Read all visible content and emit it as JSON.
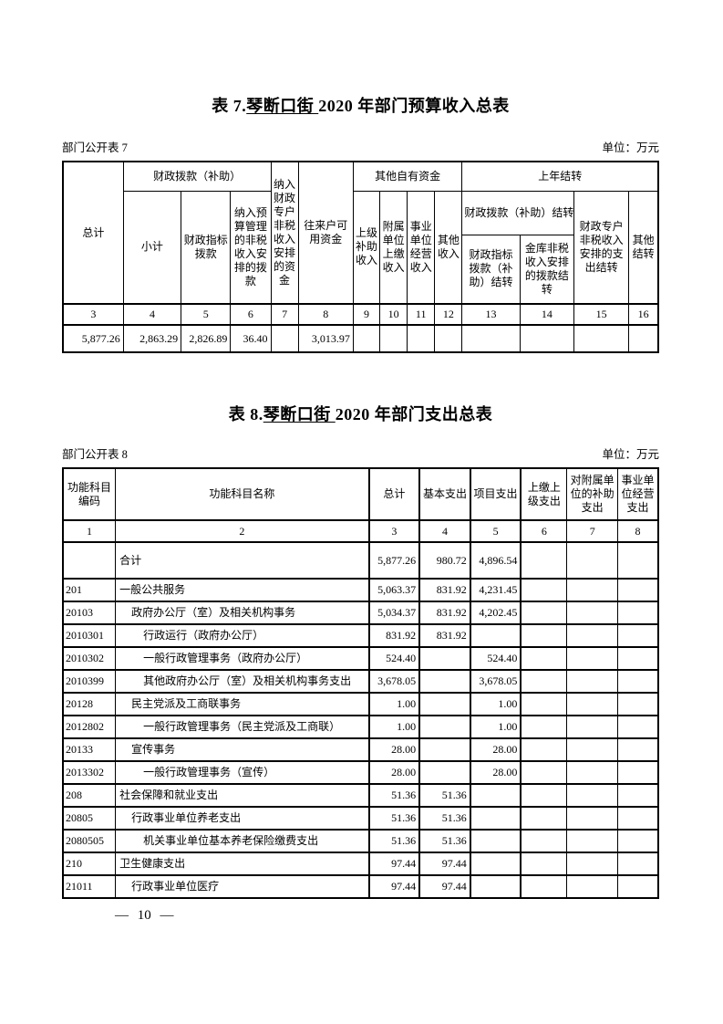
{
  "page": {
    "footer": "— 10 —"
  },
  "table7_section": {
    "title": {
      "prefix": "表 7.",
      "underlined": "琴断口街 ",
      "suffix": "2020 年部门预算收入总表"
    },
    "meta_left": "部门公开表 7",
    "meta_right": "单位：万元",
    "table": {
      "h_total": "总计",
      "h_fiscal_appropriation_group": "财政拨款（补助）",
      "h_subtotal": "小计",
      "h_fiscal_index_appropriation": "财政指标拨款",
      "h_nontax_in_budget": "纳入预算管理的非税收入安排的拨款",
      "h_nontax_special_account": "纳入财政专户非税收入安排的资金",
      "h_current_account_funds": "往来户可用资金",
      "h_other_own_funds_group": "其他自有资金",
      "h_higher_level_subsidy_income": "上级补助收入",
      "h_affiliated_unit_income": "附属单位上缴收入",
      "h_institution_operating_income": "事业单位经营收入",
      "h_other_income": "其他收入",
      "h_prev_year_carryover_group": "上年结转",
      "h_fiscal_carryover_group": "财政拨款（补助）结转",
      "h_fiscal_index_carryover": "财政指标拨款（补助）结转",
      "h_treasury_nontax_carryover": "金库非税收入安排的拨款结转",
      "h_special_account_carryover": "财政专户非税收入安排的支出结转",
      "h_other_carryover": "其他结转",
      "column_numbers": [
        "3",
        "4",
        "5",
        "6",
        "7",
        "8",
        "9",
        "10",
        "11",
        "12",
        "13",
        "14",
        "15",
        "16"
      ],
      "values": [
        "5,877.26",
        "2,863.29",
        "2,826.89",
        "36.40",
        "",
        "3,013.97",
        "",
        "",
        "",
        "",
        "",
        "",
        "",
        ""
      ]
    }
  },
  "table8_section": {
    "title": {
      "prefix": "表 8.",
      "underlined": "琴断口街 ",
      "suffix": "2020 年部门支出总表"
    },
    "meta_left": "部门公开表 8",
    "meta_right": "单位：万元",
    "table": {
      "headers": [
        "功能科目编码",
        "功能科目名称",
        "总计",
        "基本支出",
        "项目支出",
        "上缴上级支出",
        "对附属单位的补助支出",
        "事业单位经营支出"
      ],
      "column_numbers": [
        "1",
        "2",
        "3",
        "4",
        "5",
        "6",
        "7",
        "8"
      ],
      "rows": [
        {
          "code": "",
          "name": "合计",
          "indent": 0,
          "values": [
            "5,877.26",
            "980.72",
            "4,896.54",
            "",
            "",
            ""
          ]
        },
        {
          "code": "201",
          "name": "一般公共服务",
          "indent": 0,
          "values": [
            "5,063.37",
            "831.92",
            "4,231.45",
            "",
            "",
            ""
          ]
        },
        {
          "code": "20103",
          "name": "政府办公厅（室）及相关机构事务",
          "indent": 1,
          "values": [
            "5,034.37",
            "831.92",
            "4,202.45",
            "",
            "",
            ""
          ]
        },
        {
          "code": "2010301",
          "name": "行政运行（政府办公厅）",
          "indent": 2,
          "values": [
            "831.92",
            "831.92",
            "",
            "",
            "",
            ""
          ]
        },
        {
          "code": "2010302",
          "name": "一般行政管理事务（政府办公厅）",
          "indent": 2,
          "values": [
            "524.40",
            "",
            "524.40",
            "",
            "",
            ""
          ]
        },
        {
          "code": "2010399",
          "name": "其他政府办公厅（室）及相关机构事务支出",
          "indent": 2,
          "values": [
            "3,678.05",
            "",
            "3,678.05",
            "",
            "",
            ""
          ]
        },
        {
          "code": "20128",
          "name": "民主党派及工商联事务",
          "indent": 1,
          "values": [
            "1.00",
            "",
            "1.00",
            "",
            "",
            ""
          ]
        },
        {
          "code": "2012802",
          "name": "一般行政管理事务（民主党派及工商联）",
          "indent": 2,
          "values": [
            "1.00",
            "",
            "1.00",
            "",
            "",
            ""
          ]
        },
        {
          "code": "20133",
          "name": "宣传事务",
          "indent": 1,
          "values": [
            "28.00",
            "",
            "28.00",
            "",
            "",
            ""
          ]
        },
        {
          "code": "2013302",
          "name": "一般行政管理事务（宣传）",
          "indent": 2,
          "values": [
            "28.00",
            "",
            "28.00",
            "",
            "",
            ""
          ]
        },
        {
          "code": "208",
          "name": "社会保障和就业支出",
          "indent": 0,
          "values": [
            "51.36",
            "51.36",
            "",
            "",
            "",
            ""
          ]
        },
        {
          "code": "20805",
          "name": "行政事业单位养老支出",
          "indent": 1,
          "values": [
            "51.36",
            "51.36",
            "",
            "",
            "",
            ""
          ]
        },
        {
          "code": "2080505",
          "name": "机关事业单位基本养老保险缴费支出",
          "indent": 2,
          "values": [
            "51.36",
            "51.36",
            "",
            "",
            "",
            ""
          ]
        },
        {
          "code": "210",
          "name": "卫生健康支出",
          "indent": 0,
          "values": [
            "97.44",
            "97.44",
            "",
            "",
            "",
            ""
          ]
        },
        {
          "code": "21011",
          "name": "行政事业单位医疗",
          "indent": 1,
          "values": [
            "97.44",
            "97.44",
            "",
            "",
            "",
            ""
          ]
        }
      ]
    }
  }
}
